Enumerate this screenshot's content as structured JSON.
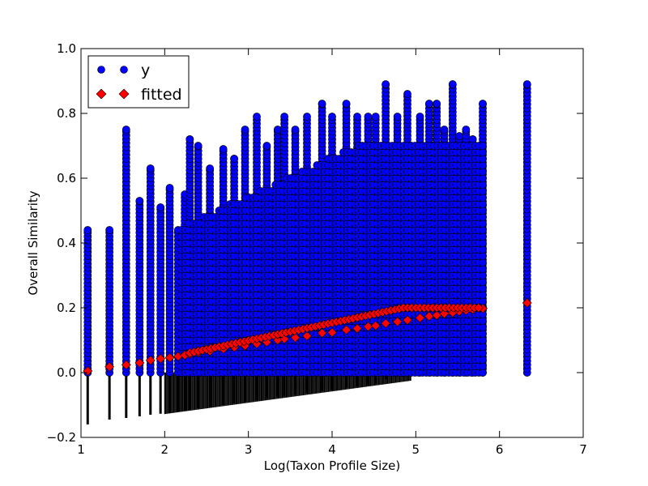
{
  "chart_data": {
    "type": "scatter",
    "title": "",
    "xlabel": "Log(Taxon Profile Size)",
    "ylabel": "Overall Similarity",
    "xlim": [
      1,
      7
    ],
    "ylim": [
      -0.2,
      1.0
    ],
    "xticks": [
      "1",
      "2",
      "3",
      "4",
      "5",
      "6",
      "7"
    ],
    "yticks": [
      "−0.2",
      "0.0",
      "0.2",
      "0.4",
      "0.6",
      "0.8",
      "1.0"
    ],
    "grid": false,
    "legend_position": "top-left",
    "fit": {
      "intercept": -0.06,
      "slope": 0.0435,
      "fitted_x_min": 1.08,
      "fitted_x_max": 6.33
    },
    "series": [
      {
        "name": "y",
        "marker": "circle",
        "color": "#0000ff",
        "edge_color": "#000000",
        "columns": [
          {
            "x": 1.08,
            "ymin": 0.0,
            "ymax": 0.44
          },
          {
            "x": 1.34,
            "ymin": 0.0,
            "ymax": 0.44
          },
          {
            "x": 1.54,
            "ymin": 0.0,
            "ymax": 0.75
          },
          {
            "x": 1.7,
            "ymin": 0.0,
            "ymax": 0.53
          },
          {
            "x": 1.83,
            "ymin": 0.0,
            "ymax": 0.63
          },
          {
            "x": 1.95,
            "ymin": 0.0,
            "ymax": 0.51
          },
          {
            "x": 2.06,
            "ymin": 0.0,
            "ymax": 0.57
          },
          {
            "x": 2.16,
            "ymin": 0.0,
            "ymax": 0.44
          },
          {
            "x": 2.24,
            "ymin": 0.0,
            "ymax": 0.55
          },
          {
            "x": 2.3,
            "ymin": 0.0,
            "ymax": 0.72
          },
          {
            "x": 2.4,
            "ymin": 0.0,
            "ymax": 0.7
          },
          {
            "x": 2.54,
            "ymin": 0.0,
            "ymax": 0.63
          },
          {
            "x": 2.7,
            "ymin": 0.0,
            "ymax": 0.69
          },
          {
            "x": 2.83,
            "ymin": 0.0,
            "ymax": 0.66
          },
          {
            "x": 2.96,
            "ymin": 0.0,
            "ymax": 0.75
          },
          {
            "x": 3.1,
            "ymin": 0.0,
            "ymax": 0.79
          },
          {
            "x": 3.22,
            "ymin": 0.0,
            "ymax": 0.7
          },
          {
            "x": 3.35,
            "ymin": 0.0,
            "ymax": 0.75
          },
          {
            "x": 3.43,
            "ymin": 0.0,
            "ymax": 0.79
          },
          {
            "x": 3.56,
            "ymin": 0.0,
            "ymax": 0.75
          },
          {
            "x": 3.7,
            "ymin": 0.0,
            "ymax": 0.79
          },
          {
            "x": 3.88,
            "ymin": 0.0,
            "ymax": 0.83
          },
          {
            "x": 4.0,
            "ymin": 0.0,
            "ymax": 0.79
          },
          {
            "x": 4.17,
            "ymin": 0.0,
            "ymax": 0.83
          },
          {
            "x": 4.3,
            "ymin": 0.0,
            "ymax": 0.79
          },
          {
            "x": 4.43,
            "ymin": 0.0,
            "ymax": 0.79
          },
          {
            "x": 4.52,
            "ymin": 0.0,
            "ymax": 0.79
          },
          {
            "x": 4.64,
            "ymin": 0.0,
            "ymax": 0.89
          },
          {
            "x": 4.78,
            "ymin": 0.0,
            "ymax": 0.79
          },
          {
            "x": 4.9,
            "ymin": 0.0,
            "ymax": 0.86
          },
          {
            "x": 5.05,
            "ymin": 0.0,
            "ymax": 0.79
          },
          {
            "x": 5.16,
            "ymin": 0.0,
            "ymax": 0.83
          },
          {
            "x": 5.25,
            "ymin": 0.0,
            "ymax": 0.83
          },
          {
            "x": 5.34,
            "ymin": 0.0,
            "ymax": 0.75
          },
          {
            "x": 5.44,
            "ymin": 0.0,
            "ymax": 0.89
          },
          {
            "x": 5.52,
            "ymin": 0.0,
            "ymax": 0.73
          },
          {
            "x": 5.6,
            "ymin": 0.0,
            "ymax": 0.75
          },
          {
            "x": 5.68,
            "ymin": 0.0,
            "ymax": 0.72
          },
          {
            "x": 5.8,
            "ymin": 0.0,
            "ymax": 0.83
          },
          {
            "x": 6.33,
            "ymin": 0.0,
            "ymax": 0.89
          }
        ]
      },
      {
        "name": "fitted",
        "marker": "diamond",
        "color": "#ff0000",
        "edge_color": "#000000",
        "x": [
          1.08,
          1.34,
          1.54,
          1.7,
          1.83,
          1.95,
          2.06,
          2.16,
          2.24,
          2.3,
          2.4,
          2.54,
          2.7,
          2.83,
          2.96,
          3.1,
          3.22,
          3.35,
          3.43,
          3.56,
          3.7,
          3.88,
          4.0,
          4.17,
          4.3,
          4.43,
          4.52,
          4.64,
          4.78,
          4.9,
          5.05,
          5.16,
          5.25,
          5.34,
          5.44,
          5.52,
          5.6,
          5.68,
          5.8,
          6.33
        ],
        "y": [
          0.005,
          0.018,
          0.024,
          0.03,
          0.038,
          0.043,
          0.046,
          0.05,
          0.054,
          0.057,
          0.062,
          0.066,
          0.073,
          0.078,
          0.083,
          0.089,
          0.094,
          0.1,
          0.104,
          0.108,
          0.113,
          0.122,
          0.124,
          0.132,
          0.136,
          0.142,
          0.145,
          0.152,
          0.157,
          0.162,
          0.169,
          0.174,
          0.177,
          0.182,
          0.185,
          0.189,
          0.192,
          0.195,
          0.198,
          0.215
        ]
      },
      {
        "name": "",
        "marker": "vline",
        "color": "#000000",
        "x": [
          1.08,
          1.34,
          1.54,
          1.7,
          1.83,
          1.95,
          2.06,
          2.16,
          2.24,
          2.3,
          2.4,
          2.54,
          2.7,
          2.83,
          2.96,
          3.1,
          3.22,
          3.35,
          3.43,
          3.56,
          3.7,
          3.88,
          4.0,
          4.17,
          4.3,
          4.43,
          4.52,
          4.64
        ],
        "ymin": [
          -0.16,
          -0.145,
          -0.14,
          -0.135,
          -0.13,
          -0.127,
          -0.124,
          -0.12,
          -0.117,
          -0.114,
          -0.11,
          -0.106,
          -0.1,
          -0.095,
          -0.09,
          -0.085,
          -0.08,
          -0.075,
          -0.072,
          -0.068,
          -0.063,
          -0.057,
          -0.053,
          -0.047,
          -0.043,
          -0.039,
          -0.035,
          -0.02
        ]
      }
    ],
    "legend": [
      {
        "label": "y",
        "marker": "circle",
        "color": "#0000ff"
      },
      {
        "label": "fitted",
        "marker": "diamond",
        "color": "#ff0000"
      }
    ]
  }
}
